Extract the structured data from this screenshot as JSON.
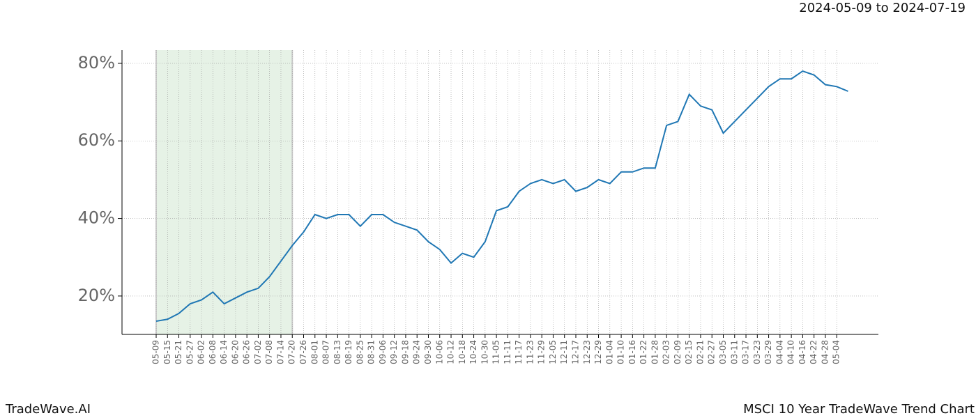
{
  "chart_data": {
    "type": "line",
    "title": "MSCI 10 Year TradeWave Trend Chart",
    "subtitle": "2024-05-09 to 2024-07-19",
    "brand": "TradeWave.AI",
    "categories": [
      "05-09",
      "05-15",
      "05-21",
      "05-27",
      "06-02",
      "06-08",
      "06-14",
      "06-20",
      "06-26",
      "07-02",
      "07-08",
      "07-14",
      "07-20",
      "07-26",
      "08-01",
      "08-07",
      "08-13",
      "08-19",
      "08-25",
      "08-31",
      "09-06",
      "09-12",
      "09-18",
      "09-24",
      "09-30",
      "10-06",
      "10-12",
      "10-18",
      "10-24",
      "10-30",
      "11-05",
      "11-11",
      "11-17",
      "11-23",
      "11-29",
      "12-05",
      "12-11",
      "12-17",
      "12-23",
      "12-29",
      "01-04",
      "01-10",
      "01-16",
      "01-22",
      "01-28",
      "02-03",
      "02-09",
      "02-15",
      "02-21",
      "02-27",
      "03-05",
      "03-11",
      "03-17",
      "03-23",
      "03-29",
      "04-04",
      "04-10",
      "04-16",
      "04-22",
      "04-28",
      "05-04",
      null
    ],
    "values": [
      13.5,
      14,
      15.5,
      18,
      19,
      21,
      18,
      19.5,
      21,
      22,
      25,
      29,
      33,
      36.5,
      41,
      40,
      41,
      41,
      38,
      41,
      41,
      39,
      38,
      37,
      34,
      32,
      28.5,
      31,
      30,
      34,
      42,
      43,
      47,
      49,
      50,
      49,
      50,
      47,
      48,
      50,
      49,
      52,
      52,
      53,
      53,
      64,
      65,
      72,
      69,
      68,
      62,
      65,
      68,
      71,
      74,
      76,
      76,
      78,
      77,
      74.5,
      74,
      72.8
    ],
    "color": "#1f77b4",
    "shade_start": "05-09",
    "shade_end": "07-20",
    "shade_color": "#e6f2e6",
    "ylim": [
      10.1,
      83.4
    ],
    "yticks": [
      {
        "value": 20,
        "label": "20%"
      },
      {
        "value": 40,
        "label": "40%"
      },
      {
        "value": 60,
        "label": "60%"
      },
      {
        "value": 80,
        "label": "80%"
      }
    ],
    "grid": true
  }
}
